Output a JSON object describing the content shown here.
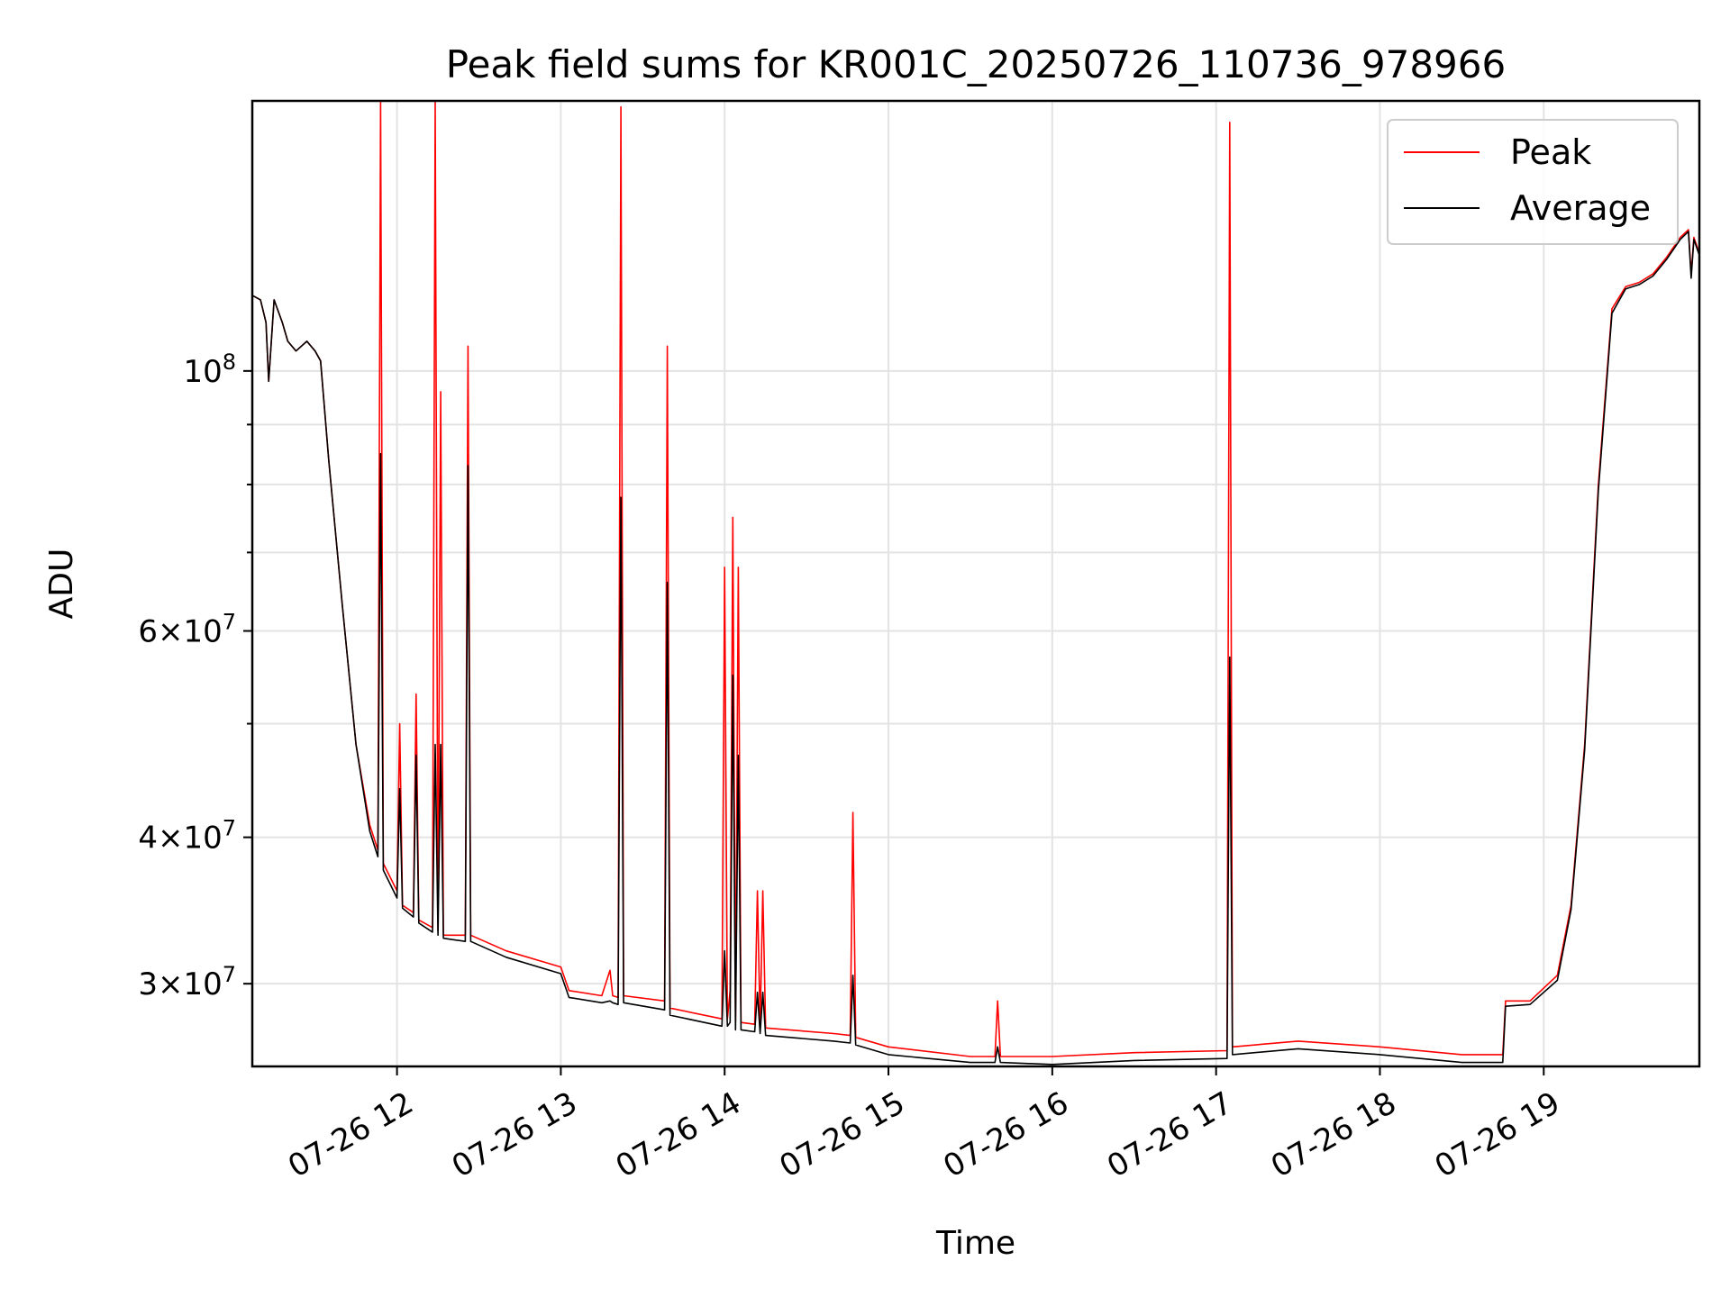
{
  "chart_data": {
    "type": "line",
    "title": "Peak field sums for KR001C_20250726_110736_978966",
    "xlabel": "Time",
    "ylabel": "ADU",
    "y_scale": "log",
    "ylim": [
      25500000,
      170000000
    ],
    "xlim": [
      "2025-07-26 11:07",
      "2025-07-26 19:57"
    ],
    "grid": true,
    "legend_position": "top-right",
    "x_ticks": [
      {
        "t": "2025-07-26 12:00",
        "label": "07-26 12"
      },
      {
        "t": "2025-07-26 13:00",
        "label": "07-26 13"
      },
      {
        "t": "2025-07-26 14:00",
        "label": "07-26 14"
      },
      {
        "t": "2025-07-26 15:00",
        "label": "07-26 15"
      },
      {
        "t": "2025-07-26 16:00",
        "label": "07-26 16"
      },
      {
        "t": "2025-07-26 17:00",
        "label": "07-26 17"
      },
      {
        "t": "2025-07-26 18:00",
        "label": "07-26 18"
      },
      {
        "t": "2025-07-26 19:00",
        "label": "07-26 19"
      }
    ],
    "y_ticks": [
      {
        "value": 30000000,
        "mantissa": "3",
        "exponent": "7"
      },
      {
        "value": 40000000,
        "mantissa": "4",
        "exponent": "7"
      },
      {
        "value": 60000000,
        "mantissa": "6",
        "exponent": "7"
      },
      {
        "value": 100000000,
        "mantissa": "",
        "exponent": "8"
      }
    ],
    "y_minor_ticks": [
      50000000,
      70000000,
      80000000,
      90000000
    ],
    "series": [
      {
        "name": "Peak",
        "color": "#ff0000",
        "points": [
          [
            "2025-07-26 11:07",
            116000000
          ],
          [
            "2025-07-26 11:10",
            115000000
          ],
          [
            "2025-07-26 11:12",
            110000000
          ],
          [
            "2025-07-26 11:13",
            98000000
          ],
          [
            "2025-07-26 11:15",
            115000000
          ],
          [
            "2025-07-26 11:18",
            110000000
          ],
          [
            "2025-07-26 11:20",
            106000000
          ],
          [
            "2025-07-26 11:23",
            104000000
          ],
          [
            "2025-07-26 11:25",
            105000000
          ],
          [
            "2025-07-26 11:27",
            106000000
          ],
          [
            "2025-07-26 11:30",
            104000000
          ],
          [
            "2025-07-26 11:32",
            102000000
          ],
          [
            "2025-07-26 11:35",
            84000000
          ],
          [
            "2025-07-26 11:40",
            63000000
          ],
          [
            "2025-07-26 11:45",
            48000000
          ],
          [
            "2025-07-26 11:50",
            41000000
          ],
          [
            "2025-07-26 11:53",
            39000000
          ],
          [
            "2025-07-26 11:54",
            170000000
          ],
          [
            "2025-07-26 11:55",
            38000000
          ],
          [
            "2025-07-26 12:00",
            36000000
          ],
          [
            "2025-07-26 12:01",
            50000000
          ],
          [
            "2025-07-26 12:02",
            35000000
          ],
          [
            "2025-07-26 12:06",
            34500000
          ],
          [
            "2025-07-26 12:07",
            53000000
          ],
          [
            "2025-07-26 12:08",
            34000000
          ],
          [
            "2025-07-26 12:13",
            33500000
          ],
          [
            "2025-07-26 12:14",
            170000000
          ],
          [
            "2025-07-26 12:15",
            33300000
          ],
          [
            "2025-07-26 12:16",
            96000000
          ],
          [
            "2025-07-26 12:17",
            33000000
          ],
          [
            "2025-07-26 12:25",
            33000000
          ],
          [
            "2025-07-26 12:26",
            105000000
          ],
          [
            "2025-07-26 12:27",
            33000000
          ],
          [
            "2025-07-26 12:40",
            32000000
          ],
          [
            "2025-07-26 13:00",
            31000000
          ],
          [
            "2025-07-26 13:03",
            29600000
          ],
          [
            "2025-07-26 13:15",
            29300000
          ],
          [
            "2025-07-26 13:18",
            30800000
          ],
          [
            "2025-07-26 13:19",
            29300000
          ],
          [
            "2025-07-26 13:21",
            29200000
          ],
          [
            "2025-07-26 13:22",
            168000000
          ],
          [
            "2025-07-26 13:23",
            29300000
          ],
          [
            "2025-07-26 13:38",
            29000000
          ],
          [
            "2025-07-26 13:39",
            105000000
          ],
          [
            "2025-07-26 13:40",
            28600000
          ],
          [
            "2025-07-26 13:59",
            28000000
          ],
          [
            "2025-07-26 14:00",
            68000000
          ],
          [
            "2025-07-26 14:01",
            28000000
          ],
          [
            "2025-07-26 14:02",
            29600000
          ],
          [
            "2025-07-26 14:03",
            75000000
          ],
          [
            "2025-07-26 14:04",
            27800000
          ],
          [
            "2025-07-26 14:05",
            68000000
          ],
          [
            "2025-07-26 14:06",
            27800000
          ],
          [
            "2025-07-26 14:11",
            27700000
          ],
          [
            "2025-07-26 14:12",
            36000000
          ],
          [
            "2025-07-26 14:13",
            27600000
          ],
          [
            "2025-07-26 14:14",
            36000000
          ],
          [
            "2025-07-26 14:15",
            27500000
          ],
          [
            "2025-07-26 14:40",
            27200000
          ],
          [
            "2025-07-26 14:46",
            27100000
          ],
          [
            "2025-07-26 14:47",
            42000000
          ],
          [
            "2025-07-26 14:48",
            27000000
          ],
          [
            "2025-07-26 15:00",
            26500000
          ],
          [
            "2025-07-26 15:30",
            26000000
          ],
          [
            "2025-07-26 15:39",
            26000000
          ],
          [
            "2025-07-26 15:40",
            29000000
          ],
          [
            "2025-07-26 15:41",
            26000000
          ],
          [
            "2025-07-26 16:00",
            26000000
          ],
          [
            "2025-07-26 16:30",
            26200000
          ],
          [
            "2025-07-26 17:04",
            26300000
          ],
          [
            "2025-07-26 17:05",
            163000000
          ],
          [
            "2025-07-26 17:06",
            26500000
          ],
          [
            "2025-07-26 17:30",
            26800000
          ],
          [
            "2025-07-26 18:00",
            26500000
          ],
          [
            "2025-07-26 18:30",
            26100000
          ],
          [
            "2025-07-26 18:45",
            26100000
          ],
          [
            "2025-07-26 18:46",
            29000000
          ],
          [
            "2025-07-26 18:55",
            29000000
          ],
          [
            "2025-07-26 19:05",
            30500000
          ],
          [
            "2025-07-26 19:10",
            35000000
          ],
          [
            "2025-07-26 19:15",
            48000000
          ],
          [
            "2025-07-26 19:20",
            80000000
          ],
          [
            "2025-07-26 19:25",
            113000000
          ],
          [
            "2025-07-26 19:30",
            118000000
          ],
          [
            "2025-07-26 19:35",
            119000000
          ],
          [
            "2025-07-26 19:40",
            121000000
          ],
          [
            "2025-07-26 19:45",
            125000000
          ],
          [
            "2025-07-26 19:50",
            130000000
          ],
          [
            "2025-07-26 19:53",
            132000000
          ],
          [
            "2025-07-26 19:54",
            121000000
          ],
          [
            "2025-07-26 19:55",
            130000000
          ],
          [
            "2025-07-26 19:57",
            126000000
          ]
        ]
      },
      {
        "name": "Average",
        "color": "#000000",
        "points": [
          [
            "2025-07-26 11:07",
            116000000
          ],
          [
            "2025-07-26 11:10",
            115000000
          ],
          [
            "2025-07-26 11:12",
            110000000
          ],
          [
            "2025-07-26 11:13",
            98000000
          ],
          [
            "2025-07-26 11:15",
            115000000
          ],
          [
            "2025-07-26 11:18",
            110000000
          ],
          [
            "2025-07-26 11:20",
            106000000
          ],
          [
            "2025-07-26 11:23",
            104000000
          ],
          [
            "2025-07-26 11:25",
            105000000
          ],
          [
            "2025-07-26 11:27",
            106000000
          ],
          [
            "2025-07-26 11:30",
            104000000
          ],
          [
            "2025-07-26 11:32",
            102000000
          ],
          [
            "2025-07-26 11:35",
            84000000
          ],
          [
            "2025-07-26 11:40",
            63000000
          ],
          [
            "2025-07-26 11:45",
            48000000
          ],
          [
            "2025-07-26 11:50",
            40500000
          ],
          [
            "2025-07-26 11:53",
            38500000
          ],
          [
            "2025-07-26 11:54",
            85000000
          ],
          [
            "2025-07-26 11:55",
            37500000
          ],
          [
            "2025-07-26 12:00",
            35500000
          ],
          [
            "2025-07-26 12:01",
            44000000
          ],
          [
            "2025-07-26 12:02",
            34800000
          ],
          [
            "2025-07-26 12:06",
            34200000
          ],
          [
            "2025-07-26 12:07",
            47000000
          ],
          [
            "2025-07-26 12:08",
            33800000
          ],
          [
            "2025-07-26 12:13",
            33200000
          ],
          [
            "2025-07-26 12:14",
            48000000
          ],
          [
            "2025-07-26 12:15",
            33000000
          ],
          [
            "2025-07-26 12:16",
            48000000
          ],
          [
            "2025-07-26 12:17",
            32800000
          ],
          [
            "2025-07-26 12:25",
            32600000
          ],
          [
            "2025-07-26 12:26",
            83000000
          ],
          [
            "2025-07-26 12:27",
            32600000
          ],
          [
            "2025-07-26 12:40",
            31600000
          ],
          [
            "2025-07-26 13:00",
            30600000
          ],
          [
            "2025-07-26 13:03",
            29200000
          ],
          [
            "2025-07-26 13:15",
            28900000
          ],
          [
            "2025-07-26 13:18",
            29000000
          ],
          [
            "2025-07-26 13:19",
            28900000
          ],
          [
            "2025-07-26 13:21",
            28800000
          ],
          [
            "2025-07-26 13:22",
            78000000
          ],
          [
            "2025-07-26 13:23",
            28900000
          ],
          [
            "2025-07-26 13:38",
            28500000
          ],
          [
            "2025-07-26 13:39",
            66000000
          ],
          [
            "2025-07-26 13:40",
            28200000
          ],
          [
            "2025-07-26 13:59",
            27600000
          ],
          [
            "2025-07-26 14:00",
            32000000
          ],
          [
            "2025-07-26 14:01",
            27600000
          ],
          [
            "2025-07-26 14:02",
            27800000
          ],
          [
            "2025-07-26 14:03",
            55000000
          ],
          [
            "2025-07-26 14:04",
            27400000
          ],
          [
            "2025-07-26 14:05",
            47000000
          ],
          [
            "2025-07-26 14:06",
            27400000
          ],
          [
            "2025-07-26 14:11",
            27300000
          ],
          [
            "2025-07-26 14:12",
            29500000
          ],
          [
            "2025-07-26 14:13",
            27200000
          ],
          [
            "2025-07-26 14:14",
            29500000
          ],
          [
            "2025-07-26 14:15",
            27100000
          ],
          [
            "2025-07-26 14:40",
            26800000
          ],
          [
            "2025-07-26 14:46",
            26700000
          ],
          [
            "2025-07-26 14:47",
            30500000
          ],
          [
            "2025-07-26 14:48",
            26600000
          ],
          [
            "2025-07-26 15:00",
            26100000
          ],
          [
            "2025-07-26 15:30",
            25700000
          ],
          [
            "2025-07-26 15:39",
            25700000
          ],
          [
            "2025-07-26 15:40",
            26500000
          ],
          [
            "2025-07-26 15:41",
            25700000
          ],
          [
            "2025-07-26 16:00",
            25600000
          ],
          [
            "2025-07-26 16:30",
            25800000
          ],
          [
            "2025-07-26 17:04",
            25900000
          ],
          [
            "2025-07-26 17:05",
            57000000
          ],
          [
            "2025-07-26 17:06",
            26100000
          ],
          [
            "2025-07-26 17:30",
            26400000
          ],
          [
            "2025-07-26 18:00",
            26100000
          ],
          [
            "2025-07-26 18:30",
            25700000
          ],
          [
            "2025-07-26 18:45",
            25700000
          ],
          [
            "2025-07-26 18:46",
            28700000
          ],
          [
            "2025-07-26 18:55",
            28800000
          ],
          [
            "2025-07-26 19:05",
            30200000
          ],
          [
            "2025-07-26 19:10",
            34700000
          ],
          [
            "2025-07-26 19:15",
            47500000
          ],
          [
            "2025-07-26 19:20",
            79000000
          ],
          [
            "2025-07-26 19:25",
            112000000
          ],
          [
            "2025-07-26 19:30",
            117500000
          ],
          [
            "2025-07-26 19:35",
            118500000
          ],
          [
            "2025-07-26 19:40",
            120500000
          ],
          [
            "2025-07-26 19:45",
            124500000
          ],
          [
            "2025-07-26 19:50",
            129500000
          ],
          [
            "2025-07-26 19:53",
            131500000
          ],
          [
            "2025-07-26 19:54",
            120000000
          ],
          [
            "2025-07-26 19:55",
            129500000
          ],
          [
            "2025-07-26 19:57",
            125500000
          ]
        ]
      }
    ]
  }
}
